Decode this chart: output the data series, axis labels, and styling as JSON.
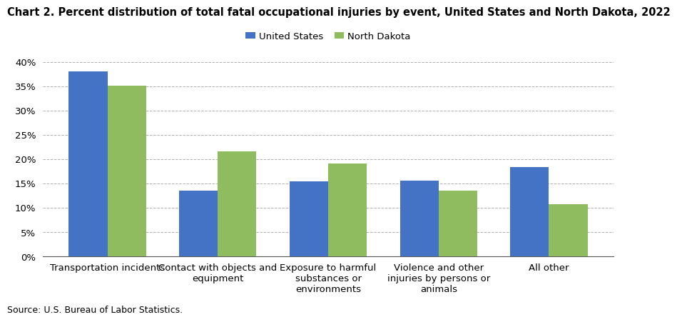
{
  "title": "Chart 2. Percent distribution of total fatal occupational injuries by event, United States and North Dakota, 2022",
  "categories": [
    "Transportation incidents",
    "Contact with objects and\nequipment",
    "Exposure to harmful\nsubstances or\nenvironments",
    "Violence and other\ninjuries by persons or\nanimals",
    "All other"
  ],
  "us_values": [
    38.0,
    13.6,
    15.4,
    15.6,
    18.4
  ],
  "nd_values": [
    35.1,
    21.6,
    19.1,
    13.6,
    10.8
  ],
  "us_color": "#4472C4",
  "nd_color": "#8FBC5E",
  "us_label": "United States",
  "nd_label": "North Dakota",
  "ylim": [
    0,
    40
  ],
  "yticks": [
    0,
    5,
    10,
    15,
    20,
    25,
    30,
    35,
    40
  ],
  "source": "Source: U.S. Bureau of Labor Statistics.",
  "background_color": "#ffffff",
  "grid_color": "#b0b0b0",
  "title_fontsize": 10.5,
  "legend_fontsize": 9.5,
  "tick_fontsize": 9.5,
  "source_fontsize": 9,
  "bar_width": 0.35
}
